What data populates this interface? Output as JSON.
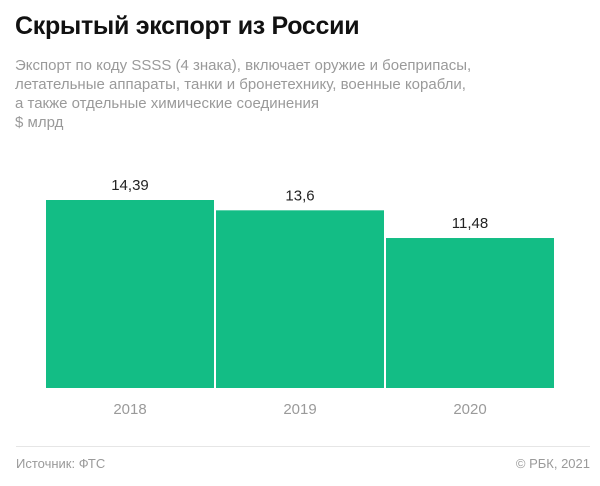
{
  "header": {
    "title": "Скрытый экспорт из России",
    "subtitle_lines": [
      "Экспорт по коду SSSS (4 знака), включает оружие и боеприпасы,",
      "летательные аппараты, танки и бронетехнику, военные корабли,",
      "а также отдельные химические соединения",
      "$ млрд"
    ]
  },
  "chart_data": {
    "type": "bar",
    "title": "Скрытый экспорт из России",
    "categories": [
      "2018",
      "2019",
      "2020"
    ],
    "values": [
      14.39,
      13.6,
      11.48
    ],
    "value_labels": [
      "14,39",
      "13,6",
      "11,48"
    ],
    "ylabel": "$ млрд",
    "ylim": [
      0,
      14.39
    ],
    "grid": false,
    "color": "#13bd85"
  },
  "footer": {
    "source": "Источник: ФТС",
    "copyright": "© РБК, 2021"
  }
}
